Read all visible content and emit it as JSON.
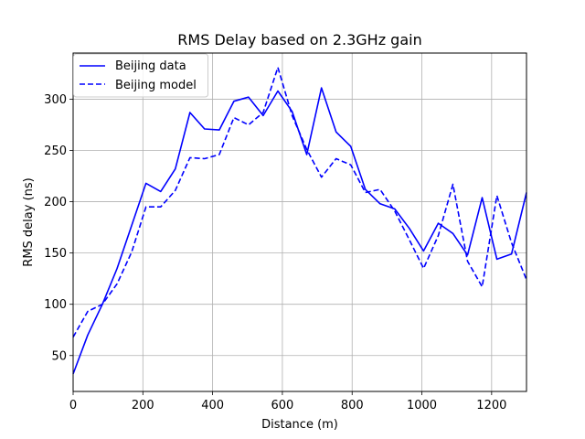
{
  "chart_data": {
    "type": "line",
    "title": "RMS Delay based on 2.3GHz gain",
    "xlabel": "Distance (m)",
    "ylabel": "RMS delay (ns)",
    "xlim": [
      0,
      1300
    ],
    "ylim": [
      15,
      345
    ],
    "xticks": [
      0,
      200,
      400,
      600,
      800,
      1000,
      1200
    ],
    "yticks": [
      50,
      100,
      150,
      200,
      250,
      300
    ],
    "grid": true,
    "legend_position": "upper-left",
    "series": [
      {
        "name": "Beijing data",
        "style": "solid",
        "color": "#0000ff",
        "x": [
          0,
          42,
          84,
          126,
          168,
          209,
          251,
          293,
          335,
          377,
          419,
          461,
          503,
          545,
          587,
          628,
          670,
          712,
          754,
          796,
          838,
          880,
          922,
          964,
          1005,
          1047,
          1089,
          1131,
          1173,
          1215,
          1257,
          1300
        ],
        "y": [
          32,
          70,
          100,
          135,
          177,
          218,
          210,
          232,
          287,
          271,
          270,
          298,
          302,
          284,
          308,
          288,
          246,
          311,
          268,
          254,
          212,
          198,
          193,
          174,
          152,
          179,
          169,
          148,
          204,
          144,
          149,
          209
        ]
      },
      {
        "name": "Beijing model",
        "style": "dashed",
        "color": "#0000ff",
        "x": [
          0,
          42,
          84,
          126,
          168,
          209,
          251,
          293,
          335,
          377,
          419,
          461,
          503,
          545,
          587,
          628,
          670,
          712,
          754,
          796,
          838,
          880,
          922,
          964,
          1005,
          1047,
          1089,
          1131,
          1173,
          1215,
          1257,
          1300
        ],
        "y": [
          68,
          93,
          100,
          120,
          151,
          195,
          195,
          211,
          243,
          242,
          246,
          282,
          275,
          287,
          331,
          284,
          251,
          224,
          242,
          236,
          209,
          212,
          191,
          163,
          135,
          167,
          217,
          142,
          117,
          206,
          160,
          124
        ]
      }
    ]
  }
}
